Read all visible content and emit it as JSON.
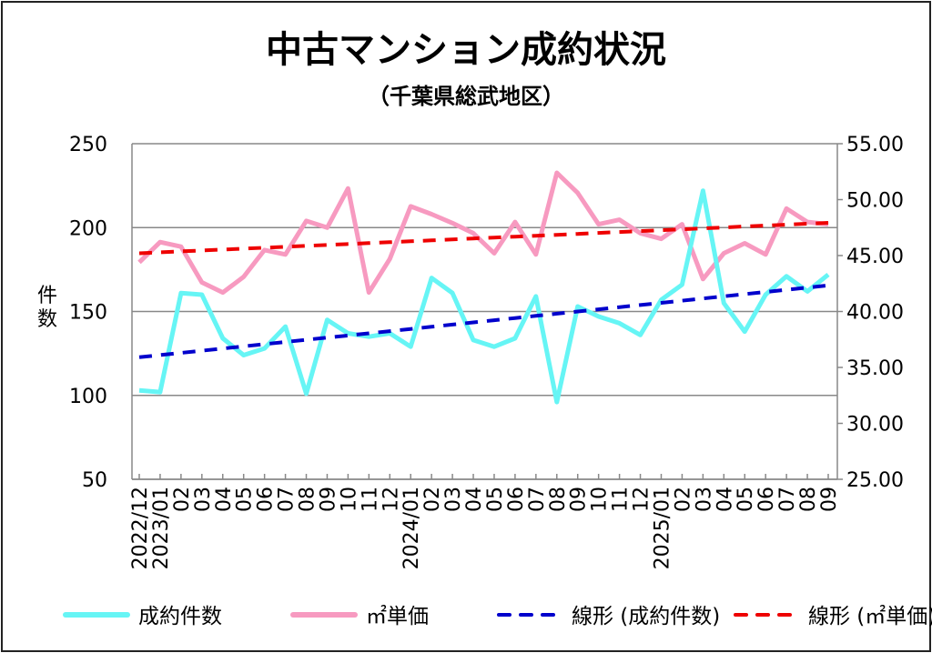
{
  "chart_data": {
    "type": "line",
    "title": "中古マンション成約状況",
    "subtitle": "（千葉県総武地区）",
    "ylabel": "件数",
    "categories": [
      "2022/12",
      "2023/01",
      "02",
      "03",
      "04",
      "05",
      "06",
      "07",
      "08",
      "09",
      "10",
      "11",
      "12",
      "2024/01",
      "02",
      "03",
      "04",
      "05",
      "06",
      "07",
      "08",
      "09",
      "10",
      "11",
      "12",
      "2025/01",
      "02",
      "03",
      "04",
      "05",
      "06",
      "07",
      "08",
      "09"
    ],
    "y_left": {
      "range": [
        50,
        250
      ],
      "ticks": [
        "250",
        "200",
        "150",
        "100",
        "50"
      ]
    },
    "y_right": {
      "range": [
        25,
        55
      ],
      "ticks": [
        "55.00",
        "50.00",
        "45.00",
        "40.00",
        "35.00",
        "30.00",
        "25.00"
      ]
    },
    "grid": true,
    "legend_placement": "bottom",
    "series": [
      {
        "name": "成約件数",
        "axis": "left",
        "color": "#66f5f5",
        "style": "solid",
        "values": [
          103,
          102,
          161,
          160,
          134,
          124,
          128,
          141,
          101,
          145,
          137,
          135,
          137,
          129,
          170,
          161,
          133,
          129,
          134,
          159,
          96,
          153,
          147,
          143,
          136,
          157,
          166,
          222,
          155,
          138,
          160,
          171,
          162,
          172
        ]
      },
      {
        "name": "㎡単価",
        "axis": "right",
        "color": "#f79ac0",
        "style": "solid",
        "values": [
          44.4,
          46.2,
          45.8,
          42.6,
          41.7,
          43.1,
          45.5,
          45.1,
          48.1,
          47.5,
          51.0,
          41.7,
          44.7,
          49.4,
          48.7,
          47.9,
          47.0,
          45.2,
          48.0,
          45.1,
          52.4,
          50.6,
          47.8,
          48.2,
          47.0,
          46.5,
          47.8,
          42.9,
          45.2,
          46.1,
          45.1,
          49.2,
          48.0,
          47.8
        ]
      },
      {
        "name": "線形 (成約件数)",
        "axis": "left",
        "color": "#0000cc",
        "style": "dashed",
        "trend_of": 0
      },
      {
        "name": "線形 (㎡単価)",
        "axis": "right",
        "color": "#ee0000",
        "style": "dashed",
        "trend_of": 1
      }
    ]
  }
}
